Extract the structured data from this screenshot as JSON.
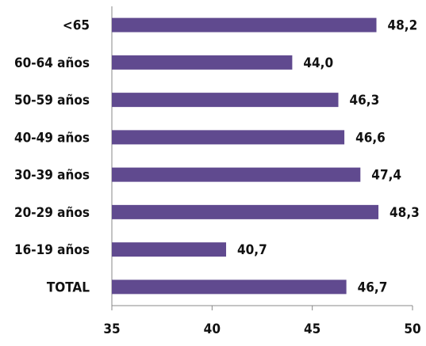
{
  "chart_data": {
    "type": "bar",
    "orientation": "horizontal",
    "categories": [
      "<65",
      "60-64 años",
      "50-59 años",
      "40-49 años",
      "30-39 años",
      "20-29 años",
      "16-19 años",
      "TOTAL"
    ],
    "values": [
      48.2,
      44.0,
      46.3,
      46.6,
      47.4,
      48.3,
      40.7,
      46.7
    ],
    "value_labels": [
      "48,2",
      "44,0",
      "46,3",
      "46,6",
      "47,4",
      "48,3",
      "40,7",
      "46,7"
    ],
    "color": "#604a8f",
    "xlim": [
      35,
      50
    ],
    "xticks": [
      35,
      40,
      45,
      50
    ],
    "grid": false
  }
}
